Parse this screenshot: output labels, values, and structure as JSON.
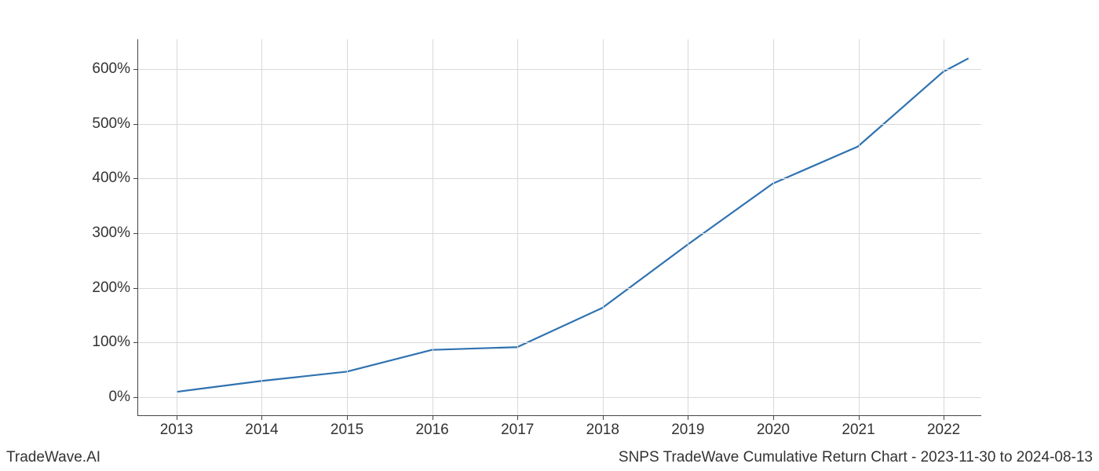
{
  "chart": {
    "type": "line",
    "background_color": "#ffffff",
    "grid_color": "#d9d9d9",
    "axis_color": "#444444",
    "line_color": "#2f72b0",
    "line_width": 2.2,
    "tick_fontsize": 19,
    "x": {
      "values": [
        2013,
        2014,
        2015,
        2016,
        2017,
        2018,
        2019,
        2020,
        2021,
        2022,
        2022.3
      ],
      "min": 2012.55,
      "max": 2022.45,
      "ticks": [
        2013,
        2014,
        2015,
        2016,
        2017,
        2018,
        2019,
        2020,
        2021,
        2022
      ],
      "tick_labels": [
        "2013",
        "2014",
        "2015",
        "2016",
        "2017",
        "2018",
        "2019",
        "2020",
        "2021",
        "2022"
      ]
    },
    "y": {
      "values": [
        8,
        28,
        45,
        85,
        90,
        162,
        278,
        390,
        458,
        595,
        620
      ],
      "min": -35,
      "max": 655,
      "ticks": [
        0,
        100,
        200,
        300,
        400,
        500,
        600
      ],
      "tick_labels": [
        "0%",
        "100%",
        "200%",
        "300%",
        "400%",
        "500%",
        "600%"
      ]
    }
  },
  "footer": {
    "left": "TradeWave.AI",
    "right": "SNPS TradeWave Cumulative Return Chart - 2023-11-30 to 2024-08-13"
  }
}
